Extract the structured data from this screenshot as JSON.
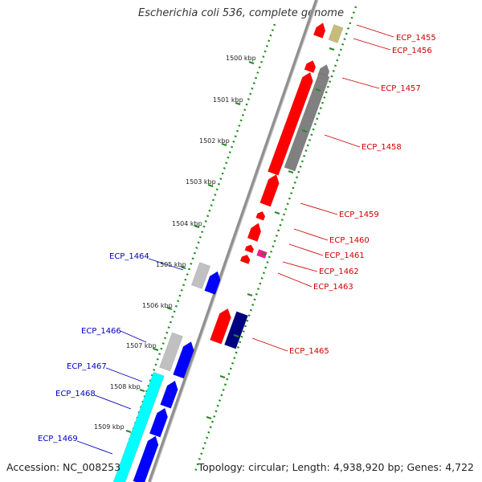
{
  "title": "Escherichia coli 536, complete genome",
  "accession": "Accession: NC_008253",
  "topology": "Topology: circular; Length: 4,938,920 bp; Genes: 4,722",
  "colors": {
    "red": "#ff0000",
    "dark_red_label": "#cc0000",
    "blue": "#0000ff",
    "navy": "#000080",
    "cyan": "#00ffff",
    "grey": "#808080",
    "light_grey": "#c0c0c0",
    "khaki": "#c8bc7a",
    "magenta": "#ff1493",
    "backbone": "#909090",
    "dotted_ring": "#228b22",
    "label_blue": "#0000bb"
  },
  "ticks": [
    {
      "label": "1500 kbp"
    },
    {
      "label": "1501 kbp"
    },
    {
      "label": "1502 kbp"
    },
    {
      "label": "1503 kbp"
    },
    {
      "label": "1504 kbp"
    },
    {
      "label": "1505 kbp"
    },
    {
      "label": "1506 kbp"
    },
    {
      "label": "1507 kbp"
    },
    {
      "label": "1508 kbp"
    },
    {
      "label": "1509 kbp"
    }
  ],
  "gene_labels": [
    {
      "text": "ECP_1455",
      "side": "right"
    },
    {
      "text": "ECP_1456",
      "side": "right"
    },
    {
      "text": "ECP_1457",
      "side": "right"
    },
    {
      "text": "ECP_1458",
      "side": "right"
    },
    {
      "text": "ECP_1459",
      "side": "right"
    },
    {
      "text": "ECP_1460",
      "side": "right"
    },
    {
      "text": "ECP_1461",
      "side": "right"
    },
    {
      "text": "ECP_1462",
      "side": "right"
    },
    {
      "text": "ECP_1463",
      "side": "right"
    },
    {
      "text": "ECP_1465",
      "side": "right"
    },
    {
      "text": "ECP_1464",
      "side": "left"
    },
    {
      "text": "ECP_1466",
      "side": "left"
    },
    {
      "text": "ECP_1467",
      "side": "left"
    },
    {
      "text": "ECP_1468",
      "side": "left"
    },
    {
      "text": "ECP_1469",
      "side": "left"
    }
  ]
}
